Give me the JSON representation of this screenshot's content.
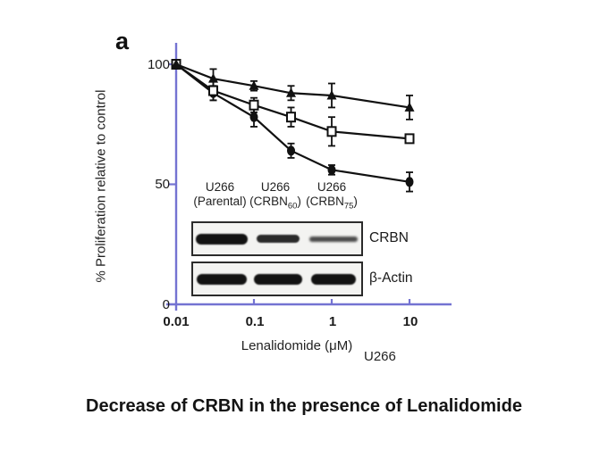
{
  "panel_label": "a",
  "figure_title": "Decrease of CRBN in the presence of Lenalidomide",
  "axes": {
    "y_title": "% Proliferation relative to control",
    "x_title": "Lenalidomide (μM)",
    "x_annotation": "U266",
    "y_ticks": [
      "100",
      "50",
      "0"
    ],
    "x_ticks": [
      "0.01",
      "0.1",
      "1",
      "10"
    ]
  },
  "chart_data": {
    "type": "line",
    "x_scale": "log",
    "x": [
      0.01,
      0.03,
      0.1,
      0.3,
      1,
      10
    ],
    "xlabel": "Lenalidomide (μM)",
    "ylabel": "% Proliferation relative to control",
    "ylim": [
      0,
      110
    ],
    "x_tick_values": [
      0.01,
      0.1,
      1,
      10
    ],
    "y_tick_values": [
      100,
      50,
      0
    ],
    "grid": false,
    "legend_position": "none",
    "series": [
      {
        "name": "U266 (Parental)",
        "marker": "circle-filled",
        "values": [
          100,
          88,
          78,
          64,
          56,
          51
        ],
        "errors": [
          0,
          3,
          4,
          3,
          2,
          4
        ]
      },
      {
        "name": "U266 (CRBN60)",
        "marker": "square-open",
        "values": [
          100,
          89,
          83,
          78,
          72,
          69
        ],
        "errors": [
          0,
          4,
          3,
          4,
          6,
          0
        ]
      },
      {
        "name": "U266 (CRBN75)",
        "marker": "triangle-filled",
        "values": [
          100,
          94,
          91,
          88,
          87,
          82
        ],
        "errors": [
          0,
          4,
          2,
          3,
          5,
          5
        ]
      }
    ]
  },
  "blot": {
    "lane_labels": [
      {
        "line1": "U266",
        "line2_pre": "(Parental)",
        "line2_sub": "",
        "line2_post": ""
      },
      {
        "line1": "U266",
        "line2_pre": "(CRBN",
        "line2_sub": "60",
        "line2_post": ")"
      },
      {
        "line1": "U266",
        "line2_pre": "(CRBN",
        "line2_sub": "75",
        "line2_post": ")"
      }
    ],
    "rows": [
      {
        "label": "CRBN",
        "band_intensities": [
          "strong",
          "medium",
          "weak"
        ]
      },
      {
        "label": "β-Actin",
        "band_intensities": [
          "strong",
          "strong",
          "strong"
        ]
      }
    ]
  },
  "colors": {
    "axis": "#7473d2",
    "series": "#111111",
    "background": "#ffffff"
  }
}
